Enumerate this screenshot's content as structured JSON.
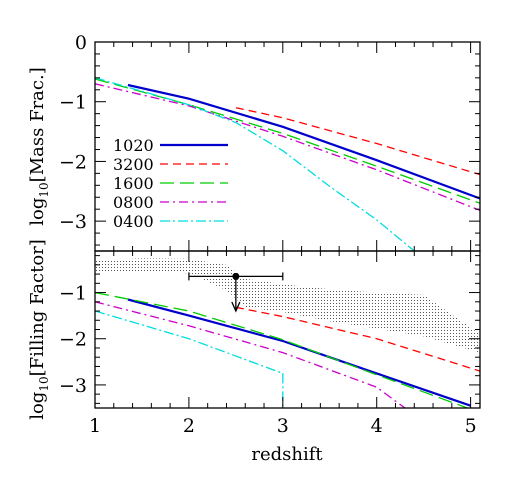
{
  "chart_data": [
    {
      "panel": "top",
      "type": "line",
      "title": "",
      "xlabel": "",
      "ylabel": "log",
      "ylabel_sub": "10",
      "ylabel_rest": "[Mass Frac.]",
      "xlim": [
        1,
        5.1
      ],
      "ylim": [
        -3.5,
        0
      ],
      "yticks": [
        0,
        -1,
        -2,
        -3
      ],
      "ytick_labels": [
        "0",
        "−1",
        "−2",
        "−3"
      ],
      "legend": {
        "placement": "lower-left",
        "entries": [
          "1020",
          "3200",
          "1600",
          "0800",
          "0400"
        ]
      },
      "series": [
        {
          "name": "1020",
          "color": "#0000cc",
          "dash": "solid",
          "width": 2.2,
          "x": [
            1.35,
            2,
            3,
            4,
            5.1
          ],
          "y": [
            -0.72,
            -0.95,
            -1.42,
            -1.98,
            -2.62
          ]
        },
        {
          "name": "3200",
          "color": "#ff0000",
          "dash": "8,5",
          "width": 1.3,
          "x": [
            2.5,
            3,
            4,
            5.1
          ],
          "y": [
            -1.1,
            -1.27,
            -1.7,
            -2.22
          ]
        },
        {
          "name": "1600",
          "color": "#00cc00",
          "dash": "14,6",
          "width": 1.3,
          "x": [
            1,
            2,
            3,
            4,
            5.1
          ],
          "y": [
            -0.62,
            -1.05,
            -1.53,
            -2.08,
            -2.7
          ]
        },
        {
          "name": "0800",
          "color": "#cc00cc",
          "dash": "9,4,2,4",
          "width": 1.3,
          "x": [
            1,
            2,
            3,
            4,
            5.1
          ],
          "y": [
            -0.7,
            -1.07,
            -1.58,
            -2.14,
            -2.82
          ]
        },
        {
          "name": "0400",
          "color": "#00dddd",
          "dash": "10,3,2,3",
          "width": 1.3,
          "x": [
            1,
            2,
            2.5,
            3,
            3.5,
            4,
            4.4
          ],
          "y": [
            -0.6,
            -1.05,
            -1.35,
            -1.82,
            -2.42,
            -2.98,
            -3.5
          ]
        }
      ]
    },
    {
      "panel": "bottom",
      "type": "line",
      "title": "",
      "xlabel": "redshift",
      "ylabel": "log",
      "ylabel_sub": "10",
      "ylabel_rest": "[Filling Factor]",
      "xlim": [
        1,
        5.1
      ],
      "ylim": [
        -3.5,
        -0.1
      ],
      "xticks": [
        1,
        2,
        3,
        4,
        5
      ],
      "xtick_labels": [
        "1",
        "2",
        "3",
        "4",
        "5"
      ],
      "yticks": [
        -1,
        -2,
        -3
      ],
      "ytick_labels": [
        "−1",
        "−2",
        "−3"
      ],
      "band": {
        "color": "#555555",
        "x": [
          1,
          1.5,
          2,
          2.4,
          2.6,
          3,
          3.5,
          4,
          4.5,
          5.1
        ],
        "upper": [
          -0.3,
          -0.26,
          -0.27,
          -0.4,
          -0.7,
          -0.82,
          -0.93,
          -1.0,
          -1.05,
          -1.9
        ],
        "lower": [
          -0.55,
          -0.55,
          -0.58,
          -0.95,
          -1.32,
          -1.42,
          -1.62,
          -1.78,
          -1.95,
          -2.3
        ]
      },
      "observation": {
        "x": 2.5,
        "y": -0.65,
        "xerr": [
          2.0,
          3.0
        ],
        "upper_limit_to": -1.4
      },
      "series": [
        {
          "name": "1020",
          "color": "#0000cc",
          "dash": "solid",
          "width": 2.2,
          "x": [
            1.35,
            2,
            3,
            4,
            5
          ],
          "y": [
            -1.15,
            -1.5,
            -2.05,
            -2.75,
            -3.45
          ]
        },
        {
          "name": "3200",
          "color": "#ff0000",
          "dash": "8,5",
          "width": 1.3,
          "x": [
            2.5,
            3,
            4,
            5.1
          ],
          "y": [
            -1.32,
            -1.52,
            -2.0,
            -2.7
          ]
        },
        {
          "name": "1600",
          "color": "#00cc00",
          "dash": "14,6",
          "width": 1.3,
          "x": [
            1,
            2,
            3,
            4,
            5.1
          ],
          "y": [
            -1.0,
            -1.4,
            -2.02,
            -2.78,
            -3.6
          ]
        },
        {
          "name": "0800",
          "color": "#cc00cc",
          "dash": "9,4,2,4",
          "width": 1.3,
          "x": [
            1,
            2,
            3,
            4,
            4.3
          ],
          "y": [
            -1.2,
            -1.72,
            -2.3,
            -3.05,
            -3.5
          ]
        },
        {
          "name": "0400",
          "color": "#00dddd",
          "dash": "10,3,2,3",
          "width": 1.3,
          "x": [
            1,
            2,
            3
          ],
          "y": [
            -1.4,
            -2.0,
            -2.75
          ],
          "drop_to_bottom_at": 3
        }
      ]
    }
  ]
}
